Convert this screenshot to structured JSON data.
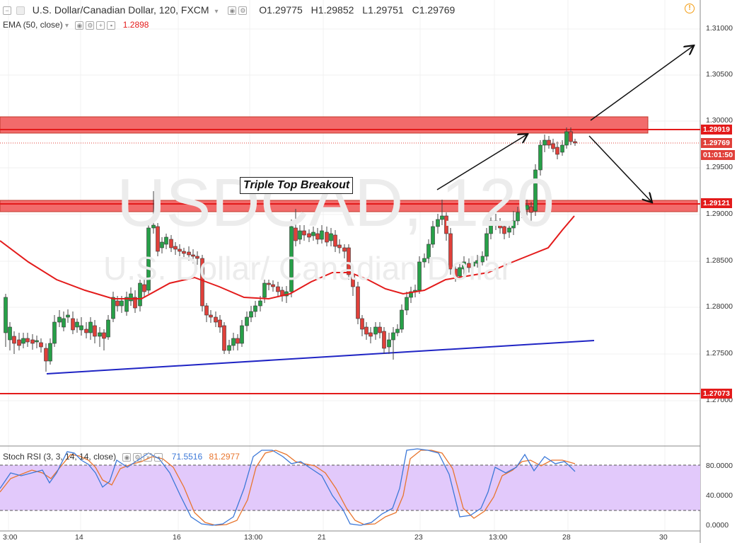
{
  "header": {
    "title": "U.S. Dollar/Canadian Dollar, 120, FXCM",
    "ohlc": {
      "open_label": "O",
      "open": "1.29775",
      "high_label": "H",
      "high": "1.29852",
      "low_label": "L",
      "low": "1.29751",
      "close_label": "C",
      "close": "1.29769"
    }
  },
  "ema": {
    "label": "EMA (50, close)",
    "value": "1.2898",
    "color": "#e31b1b"
  },
  "watermark": {
    "symbol": "USDCAD, 120",
    "name": "U.S. Dollar/ Canadian Dollar"
  },
  "annotation": {
    "text": "Triple Top Breakout"
  },
  "price_axis": {
    "ticks": [
      "1.31000",
      "1.30500",
      "1.30000",
      "1.29500",
      "1.29000",
      "1.28500",
      "1.28000",
      "1.27500",
      "1.27000"
    ],
    "tags": {
      "resistance": "1.29919",
      "current": "1.29769",
      "countdown": "01:01:50",
      "support": "1.29121",
      "low_line": "1.27073"
    }
  },
  "stoch_rsi": {
    "label": "Stoch RSI (3, 3, 14, 14, close)",
    "k_value": "71.5516",
    "d_value": "81.2977",
    "k_color": "#3c78d8",
    "d_color": "#e8752d",
    "ticks": [
      "80.0000",
      "40.0000",
      "0.0000"
    ]
  },
  "time_axis": {
    "labels": [
      "3:00",
      "14",
      "16",
      "13:00",
      "21",
      "23",
      "13:00",
      "28",
      "30"
    ]
  },
  "colors": {
    "bull": "#27a048",
    "bear": "#e0403a",
    "zone": "#f26b6b",
    "trendline": "#1f24c4",
    "level": "#e31b1b",
    "rsi_band": "#e2c9fb"
  }
}
